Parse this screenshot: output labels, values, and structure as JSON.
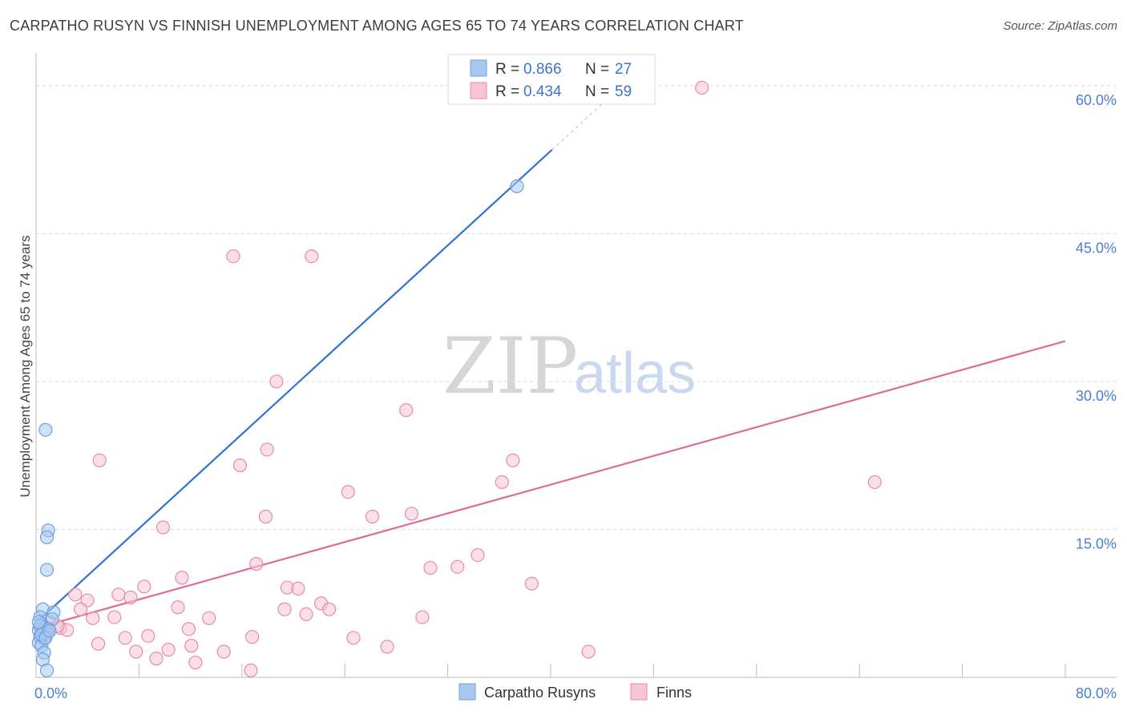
{
  "header": {
    "title": "CARPATHO RUSYN VS FINNISH UNEMPLOYMENT AMONG AGES 65 TO 74 YEARS CORRELATION CHART",
    "source": "Source: ZipAtlas.com"
  },
  "watermark": {
    "zip": "ZIP",
    "atlas": "atlas"
  },
  "stats": [
    {
      "r_label": "R = ",
      "r_value": "0.866",
      "n_label": "N = ",
      "n_value": "27"
    },
    {
      "r_label": "R = ",
      "r_value": "0.434",
      "n_label": "N = ",
      "n_value": "59"
    }
  ],
  "chart_data": {
    "type": "scatter",
    "title": "CARPATHO RUSYN VS FINNISH UNEMPLOYMENT AMONG AGES 65 TO 74 YEARS CORRELATION CHART",
    "xlabel": "",
    "ylabel": "Unemployment Among Ages 65 to 74 years",
    "xlim": [
      0,
      80
    ],
    "ylim": [
      0,
      63
    ],
    "x_tick_labels": [
      {
        "value": 0,
        "label": "0.0%"
      },
      {
        "value": 80,
        "label": "80.0%"
      }
    ],
    "y_ticks": [
      {
        "value": 15,
        "label": "15.0%"
      },
      {
        "value": 30,
        "label": "30.0%"
      },
      {
        "value": 45,
        "label": "45.0%"
      },
      {
        "value": 60,
        "label": "60.0%"
      }
    ],
    "x_minor_ticks": [
      7.62,
      15.24,
      22.86,
      30.48,
      38.1,
      45.72,
      53.34,
      60.96,
      68.58,
      76.2
    ],
    "legend": [
      "Carpatho Rusyns",
      "Finns"
    ],
    "series": [
      {
        "name": "Carpatho Rusyns",
        "color": "#6f9fe0",
        "fill": "#a8c8f0",
        "line_color": "#2f72d4",
        "r": 0.866,
        "n": 27,
        "trend": {
          "x0": 0.3,
          "y0": 5.9,
          "x1": 38.2,
          "y1": 53.5,
          "dash_x1": 42.5,
          "dash_y1": 58.9
        },
        "points": [
          [
            0.7,
            25.1
          ],
          [
            0.9,
            14.9
          ],
          [
            0.8,
            14.2
          ],
          [
            0.8,
            10.9
          ],
          [
            0.5,
            6.9
          ],
          [
            1.3,
            6.6
          ],
          [
            1.2,
            5.9
          ],
          [
            0.3,
            6.1
          ],
          [
            0.4,
            5.4
          ],
          [
            0.6,
            5.0
          ],
          [
            0.2,
            4.8
          ],
          [
            0.5,
            4.6
          ],
          [
            0.8,
            4.4
          ],
          [
            0.3,
            4.1
          ],
          [
            0.6,
            3.9
          ],
          [
            0.2,
            3.5
          ],
          [
            0.4,
            3.2
          ],
          [
            0.6,
            2.5
          ],
          [
            0.5,
            1.8
          ],
          [
            0.8,
            0.7
          ],
          [
            0.3,
            5.2
          ],
          [
            0.9,
            4.9
          ],
          [
            0.4,
            4.3
          ],
          [
            0.7,
            4.0
          ],
          [
            1.0,
            4.7
          ],
          [
            0.2,
            5.6
          ],
          [
            35.6,
            49.8
          ]
        ]
      },
      {
        "name": "Finns",
        "color": "#e88aaa",
        "fill": "#f6c4d4",
        "line_color": "#e06a93",
        "r": 0.434,
        "n": 59,
        "trend": {
          "x0": 0.3,
          "y0": 5.1,
          "x1": 76.2,
          "y1": 34.1
        },
        "points": [
          [
            49.3,
            59.8
          ],
          [
            14.6,
            42.7
          ],
          [
            20.4,
            42.7
          ],
          [
            17.8,
            30.0
          ],
          [
            27.4,
            27.1
          ],
          [
            4.7,
            22.0
          ],
          [
            15.1,
            21.5
          ],
          [
            17.1,
            23.1
          ],
          [
            35.3,
            22.0
          ],
          [
            34.5,
            19.8
          ],
          [
            62.1,
            19.8
          ],
          [
            23.1,
            18.8
          ],
          [
            27.8,
            16.6
          ],
          [
            24.9,
            16.3
          ],
          [
            17.0,
            16.3
          ],
          [
            9.4,
            15.2
          ],
          [
            32.7,
            12.4
          ],
          [
            16.3,
            11.5
          ],
          [
            29.2,
            11.1
          ],
          [
            31.2,
            11.2
          ],
          [
            10.8,
            10.1
          ],
          [
            8.0,
            9.2
          ],
          [
            18.6,
            9.1
          ],
          [
            19.4,
            9.0
          ],
          [
            36.7,
            9.5
          ],
          [
            6.1,
            8.4
          ],
          [
            2.9,
            8.4
          ],
          [
            3.8,
            7.8
          ],
          [
            7.0,
            8.1
          ],
          [
            21.1,
            7.5
          ],
          [
            10.5,
            7.1
          ],
          [
            18.4,
            6.9
          ],
          [
            21.7,
            6.9
          ],
          [
            3.3,
            6.9
          ],
          [
            12.8,
            6.0
          ],
          [
            5.8,
            6.1
          ],
          [
            4.2,
            6.0
          ],
          [
            20.0,
            6.4
          ],
          [
            28.6,
            6.1
          ],
          [
            1.8,
            5.0
          ],
          [
            2.3,
            4.8
          ],
          [
            11.3,
            4.9
          ],
          [
            0.9,
            4.8
          ],
          [
            6.6,
            4.0
          ],
          [
            8.3,
            4.2
          ],
          [
            16.0,
            4.1
          ],
          [
            23.5,
            4.0
          ],
          [
            4.6,
            3.4
          ],
          [
            11.5,
            3.2
          ],
          [
            9.8,
            2.8
          ],
          [
            26.0,
            3.1
          ],
          [
            7.4,
            2.6
          ],
          [
            13.9,
            2.6
          ],
          [
            40.9,
            2.6
          ],
          [
            8.9,
            1.9
          ],
          [
            11.8,
            1.5
          ],
          [
            15.9,
            0.7
          ],
          [
            1.0,
            5.6
          ],
          [
            1.6,
            5.2
          ]
        ]
      }
    ]
  }
}
